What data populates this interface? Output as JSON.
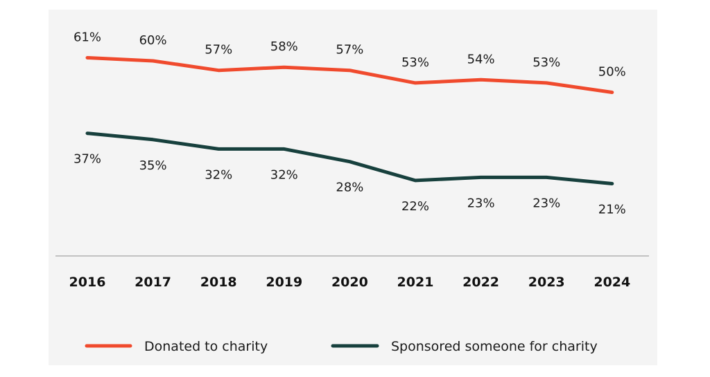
{
  "chart_data": {
    "type": "line",
    "x": [
      "2016",
      "2017",
      "2018",
      "2019",
      "2020",
      "2021",
      "2022",
      "2023",
      "2024"
    ],
    "series": [
      {
        "name": "Donated to charity",
        "values": [
          61,
          60,
          57,
          58,
          57,
          53,
          54,
          53,
          50
        ],
        "labels": [
          "61%",
          "60%",
          "57%",
          "58%",
          "57%",
          "53%",
          "54%",
          "53%",
          "50%"
        ],
        "color": "#f04a2d"
      },
      {
        "name": "Sponsored someone for charity",
        "values": [
          37,
          35,
          32,
          32,
          28,
          22,
          23,
          23,
          21
        ],
        "labels": [
          "37%",
          "35%",
          "32%",
          "32%",
          "28%",
          "22%",
          "23%",
          "23%",
          "21%"
        ],
        "color": "#17403d"
      }
    ],
    "legend_position": "bottom",
    "grid": false
  }
}
